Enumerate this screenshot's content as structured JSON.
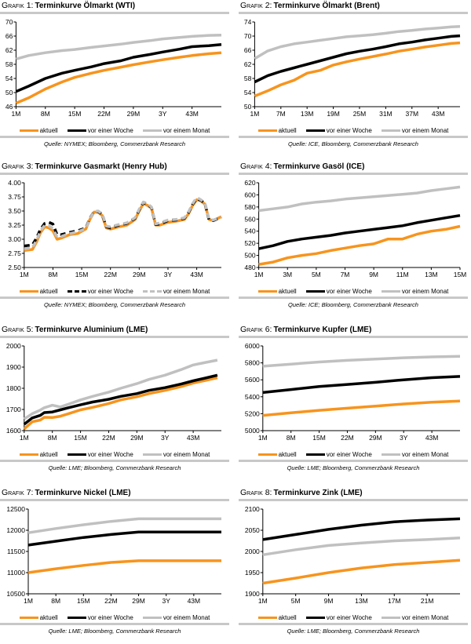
{
  "legend_colors": {
    "aktuell": "#f7941d",
    "vor einer Woche": "#000000",
    "vor einem Monat": "#c0c0c0"
  },
  "chart_data": [
    {
      "type": "line",
      "label": "Grafik 1:",
      "title": "Terminkurve Ölmarkt (WTI)",
      "source": "Quelle: NYMEX; Bloomberg, Commerzbank Research",
      "xlim": [
        1,
        50
      ],
      "ylim": [
        46,
        70
      ],
      "yticks": [
        "46",
        "50",
        "54",
        "58",
        "62",
        "66",
        "70"
      ],
      "xticks": [
        {
          "x": 1,
          "label": "1M"
        },
        {
          "x": 8,
          "label": "8M"
        },
        {
          "x": 15,
          "label": "15M"
        },
        {
          "x": 22,
          "label": "22M"
        },
        {
          "x": 29,
          "label": "29M"
        },
        {
          "x": 36,
          "label": "3Y"
        },
        {
          "x": 43,
          "label": "43M"
        }
      ],
      "x": [
        1,
        4,
        8,
        12,
        15,
        19,
        22,
        26,
        29,
        33,
        36,
        40,
        43,
        47,
        50
      ],
      "series": [
        {
          "name": "aktuell",
          "color": "#f7941d",
          "values": [
            47,
            48.5,
            51,
            53,
            54.3,
            55.5,
            56.3,
            57.2,
            57.9,
            58.7,
            59.3,
            60,
            60.5,
            61,
            61.3
          ]
        },
        {
          "name": "vor einer Woche",
          "color": "#000000",
          "values": [
            50.3,
            51.8,
            54,
            55.5,
            56.3,
            57.3,
            58.2,
            59,
            60,
            60.8,
            61.5,
            62.3,
            63,
            63.3,
            63.6
          ]
        },
        {
          "name": "vor einem Monat",
          "color": "#c0c0c0",
          "values": [
            59.5,
            60.5,
            61.3,
            61.9,
            62.2,
            62.8,
            63.2,
            63.7,
            64.2,
            64.7,
            65.2,
            65.6,
            65.9,
            66.2,
            66.3
          ]
        }
      ]
    },
    {
      "type": "line",
      "label": "Grafik 2:",
      "title": "Terminkurve Ölmarkt (Brent)",
      "source": "Quelle: ICE, Bloomberg, Commerzbank Research",
      "xlim": [
        1,
        48
      ],
      "ylim": [
        50,
        74
      ],
      "yticks": [
        "50",
        "54",
        "58",
        "62",
        "66",
        "70",
        "74"
      ],
      "xticks": [
        {
          "x": 1,
          "label": "1M"
        },
        {
          "x": 7,
          "label": "7M"
        },
        {
          "x": 13,
          "label": "13M"
        },
        {
          "x": 19,
          "label": "19M"
        },
        {
          "x": 25,
          "label": "25M"
        },
        {
          "x": 31,
          "label": "31M"
        },
        {
          "x": 37,
          "label": "37M"
        },
        {
          "x": 43,
          "label": "43M"
        }
      ],
      "x": [
        1,
        4,
        7,
        10,
        13,
        16,
        19,
        22,
        25,
        28,
        31,
        34,
        37,
        40,
        43,
        46,
        48
      ],
      "series": [
        {
          "name": "aktuell",
          "color": "#f7941d",
          "values": [
            53,
            54.5,
            56.2,
            57.5,
            59.5,
            60.3,
            61.8,
            62.7,
            63.5,
            64.2,
            64.9,
            65.7,
            66.3,
            66.9,
            67.4,
            67.9,
            68.1
          ]
        },
        {
          "name": "vor einer Woche",
          "color": "#000000",
          "values": [
            57,
            58.8,
            60,
            61,
            62,
            63,
            64,
            65,
            65.7,
            66.3,
            67,
            67.8,
            68.3,
            68.9,
            69.4,
            69.9,
            70.1
          ]
        },
        {
          "name": "vor einem Monat",
          "color": "#c0c0c0",
          "values": [
            63.6,
            65.8,
            67,
            67.8,
            68.3,
            68.8,
            69.3,
            69.8,
            70.1,
            70.4,
            70.8,
            71.3,
            71.6,
            72,
            72.3,
            72.6,
            72.7
          ]
        }
      ]
    },
    {
      "type": "line",
      "label": "Grafik 3:",
      "title": "Terminkurve Gasmarkt (Henry Hub)",
      "source": "Quelle: NYMEX; Bloomberg, Commerzbank Research",
      "xlim": [
        1,
        49
      ],
      "ylim": [
        2.5,
        4.0
      ],
      "dashed": [
        "vor einer Woche",
        "vor einem Monat"
      ],
      "yticks": [
        "2.50",
        "2.75",
        "3.00",
        "3.25",
        "3.50",
        "3.75",
        "4.00"
      ],
      "xticks": [
        {
          "x": 1,
          "label": "1M"
        },
        {
          "x": 8,
          "label": "8M"
        },
        {
          "x": 15,
          "label": "15M"
        },
        {
          "x": 22,
          "label": "22M"
        },
        {
          "x": 29,
          "label": "29M"
        },
        {
          "x": 36,
          "label": "3Y"
        },
        {
          "x": 43,
          "label": "43M"
        }
      ],
      "x": [
        1,
        3,
        4,
        5,
        6,
        7,
        8,
        9,
        10,
        12,
        14,
        16,
        17,
        18,
        19,
        20,
        21,
        22,
        24,
        26,
        28,
        29,
        30,
        31,
        32,
        33,
        34,
        36,
        38,
        40,
        41,
        42,
        43,
        44,
        45,
        46,
        47,
        49
      ],
      "series": [
        {
          "name": "aktuell",
          "color": "#f7941d",
          "values": [
            2.8,
            2.82,
            2.95,
            3.12,
            3.22,
            3.2,
            3.15,
            3.0,
            3.02,
            3.08,
            3.1,
            3.18,
            3.35,
            3.48,
            3.48,
            3.42,
            3.2,
            3.18,
            3.22,
            3.25,
            3.35,
            3.5,
            3.63,
            3.6,
            3.55,
            3.25,
            3.25,
            3.3,
            3.32,
            3.35,
            3.45,
            3.6,
            3.7,
            3.68,
            3.62,
            3.35,
            3.33,
            3.4
          ]
        },
        {
          "name": "vor einer Woche",
          "color": "#000000",
          "values": [
            2.88,
            2.9,
            3.02,
            3.18,
            3.28,
            3.3,
            3.27,
            3.08,
            3.08,
            3.12,
            3.15,
            3.2,
            3.37,
            3.49,
            3.49,
            3.44,
            3.22,
            3.2,
            3.25,
            3.28,
            3.37,
            3.52,
            3.65,
            3.62,
            3.56,
            3.26,
            3.27,
            3.33,
            3.34,
            3.37,
            3.47,
            3.62,
            3.72,
            3.69,
            3.63,
            3.34,
            3.33,
            3.39
          ]
        },
        {
          "name": "vor einem Monat",
          "color": "#c0c0c0",
          "values": [
            2.83,
            2.85,
            2.98,
            3.15,
            3.25,
            3.24,
            3.19,
            3.04,
            3.05,
            3.1,
            3.13,
            3.19,
            3.36,
            3.49,
            3.5,
            3.45,
            3.23,
            3.22,
            3.26,
            3.29,
            3.38,
            3.53,
            3.66,
            3.63,
            3.57,
            3.27,
            3.29,
            3.34,
            3.35,
            3.38,
            3.48,
            3.63,
            3.74,
            3.7,
            3.64,
            3.35,
            3.34,
            3.39
          ]
        }
      ]
    },
    {
      "type": "line",
      "label": "Grafik 4:",
      "title": "Terminkurve Gasöl (ICE)",
      "source": "Quelle: ICE; Bloomberg, Commerzbank Research",
      "xlim": [
        1,
        15
      ],
      "ylim": [
        480,
        620
      ],
      "yticks": [
        "480",
        "500",
        "520",
        "540",
        "560",
        "580",
        "600",
        "620"
      ],
      "xticks": [
        {
          "x": 1,
          "label": "1M"
        },
        {
          "x": 3,
          "label": "3M"
        },
        {
          "x": 5,
          "label": "5M"
        },
        {
          "x": 7,
          "label": "7M"
        },
        {
          "x": 9,
          "label": "9M"
        },
        {
          "x": 11,
          "label": "11M"
        },
        {
          "x": 13,
          "label": "13M"
        },
        {
          "x": 15,
          "label": "15M"
        }
      ],
      "x": [
        1,
        2,
        3,
        4,
        5,
        6,
        7,
        8,
        9,
        10,
        11,
        12,
        13,
        14,
        15
      ],
      "series": [
        {
          "name": "aktuell",
          "color": "#f7941d",
          "values": [
            485,
            489,
            496,
            500,
            503,
            508,
            512,
            516,
            519,
            527,
            527,
            535,
            540,
            543,
            548
          ]
        },
        {
          "name": "vor einer Woche",
          "color": "#000000",
          "values": [
            511,
            516,
            523,
            527,
            530,
            533,
            537,
            540,
            543,
            546,
            549,
            554,
            558,
            562,
            566
          ]
        },
        {
          "name": "vor einem Monat",
          "color": "#c0c0c0",
          "values": [
            574,
            577,
            580,
            585,
            588,
            590,
            593,
            595,
            597,
            599,
            601,
            603,
            607,
            610,
            613
          ]
        }
      ]
    },
    {
      "type": "line",
      "label": "Grafik 5:",
      "title": "Terminkurve Aluminium (LME)",
      "source": "Quelle: LME; Bloomberg, Commerzbank Research",
      "xlim": [
        1,
        50
      ],
      "ylim": [
        1600,
        2000
      ],
      "yticks": [
        "1600",
        "1700",
        "1800",
        "1900",
        "2000"
      ],
      "xticks": [
        {
          "x": 1,
          "label": "1M"
        },
        {
          "x": 8,
          "label": "8M"
        },
        {
          "x": 15,
          "label": "15M"
        },
        {
          "x": 22,
          "label": "22M"
        },
        {
          "x": 29,
          "label": "29M"
        },
        {
          "x": 36,
          "label": "3Y"
        },
        {
          "x": 43,
          "label": "43M"
        }
      ],
      "x": [
        1,
        3,
        5,
        6,
        8,
        10,
        12,
        15,
        18,
        22,
        25,
        29,
        32,
        36,
        40,
        43,
        46,
        49
      ],
      "series": [
        {
          "name": "aktuell",
          "color": "#f7941d",
          "values": [
            1608,
            1642,
            1650,
            1663,
            1662,
            1668,
            1680,
            1698,
            1710,
            1728,
            1745,
            1760,
            1775,
            1790,
            1808,
            1825,
            1837,
            1850
          ]
        },
        {
          "name": "vor einer Woche",
          "color": "#000000",
          "values": [
            1630,
            1660,
            1672,
            1685,
            1688,
            1698,
            1708,
            1722,
            1735,
            1748,
            1762,
            1775,
            1790,
            1803,
            1820,
            1835,
            1848,
            1862
          ]
        },
        {
          "name": "vor einem Monat",
          "color": "#c0c0c0",
          "values": [
            1655,
            1680,
            1697,
            1708,
            1720,
            1712,
            1725,
            1745,
            1762,
            1782,
            1800,
            1822,
            1842,
            1862,
            1888,
            1910,
            1922,
            1933
          ]
        }
      ]
    },
    {
      "type": "line",
      "label": "Grafik 6:",
      "title": "Terminkurve Kupfer (LME)",
      "source": "Quelle: LME; Bloomberg, Commerzbank Research",
      "xlim": [
        1,
        50
      ],
      "ylim": [
        5000,
        6000
      ],
      "yticks": [
        "5000",
        "5200",
        "5400",
        "5600",
        "5800",
        "6000"
      ],
      "xticks": [
        {
          "x": 1,
          "label": "1M"
        },
        {
          "x": 8,
          "label": "8M"
        },
        {
          "x": 15,
          "label": "15M"
        },
        {
          "x": 22,
          "label": "22M"
        },
        {
          "x": 29,
          "label": "29M"
        },
        {
          "x": 36,
          "label": "3Y"
        },
        {
          "x": 43,
          "label": "43M"
        }
      ],
      "x": [
        1,
        8,
        15,
        22,
        29,
        36,
        43,
        50
      ],
      "series": [
        {
          "name": "aktuell",
          "color": "#f7941d",
          "values": [
            5180,
            5210,
            5240,
            5265,
            5290,
            5315,
            5335,
            5350
          ]
        },
        {
          "name": "vor einer Woche",
          "color": "#000000",
          "values": [
            5450,
            5485,
            5520,
            5545,
            5570,
            5600,
            5625,
            5640
          ]
        },
        {
          "name": "vor einem Monat",
          "color": "#c0c0c0",
          "values": [
            5760,
            5785,
            5810,
            5830,
            5845,
            5860,
            5870,
            5878
          ]
        }
      ]
    },
    {
      "type": "line",
      "label": "Grafik 7:",
      "title": "Terminkurve Nickel (LME)",
      "source": "Quelle: LME; Bloomberg, Commerzbank Research",
      "xlim": [
        1,
        50
      ],
      "ylim": [
        10500,
        12500
      ],
      "yticks": [
        "10500",
        "11000",
        "11500",
        "12000",
        "12500"
      ],
      "xticks": [
        {
          "x": 1,
          "label": "1M"
        },
        {
          "x": 8,
          "label": "8M"
        },
        {
          "x": 15,
          "label": "15M"
        },
        {
          "x": 22,
          "label": "22M"
        },
        {
          "x": 29,
          "label": "29M"
        },
        {
          "x": 36,
          "label": "3Y"
        },
        {
          "x": 43,
          "label": "43M"
        }
      ],
      "x": [
        1,
        8,
        15,
        22,
        29,
        36,
        43,
        50
      ],
      "series": [
        {
          "name": "aktuell",
          "color": "#f7941d",
          "values": [
            11000,
            11090,
            11170,
            11240,
            11280,
            11280,
            11280,
            11280
          ]
        },
        {
          "name": "vor einer Woche",
          "color": "#000000",
          "values": [
            11650,
            11740,
            11830,
            11900,
            11960,
            11960,
            11960,
            11960
          ]
        },
        {
          "name": "vor einem Monat",
          "color": "#c0c0c0",
          "values": [
            11940,
            12040,
            12130,
            12210,
            12270,
            12270,
            12270,
            12270
          ]
        }
      ]
    },
    {
      "type": "line",
      "label": "Grafik 8:",
      "title": "Terminkurve Zink (LME)",
      "source": "Quelle: LME; Bloomberg, Commerzbank Research",
      "xlim": [
        1,
        25
      ],
      "ylim": [
        1900,
        2100
      ],
      "yticks": [
        "1900",
        "1950",
        "2000",
        "2050",
        "2100"
      ],
      "xticks": [
        {
          "x": 1,
          "label": "1M"
        },
        {
          "x": 5,
          "label": "5M"
        },
        {
          "x": 9,
          "label": "9M"
        },
        {
          "x": 13,
          "label": "13M"
        },
        {
          "x": 17,
          "label": "17M"
        },
        {
          "x": 21,
          "label": "21M"
        }
      ],
      "x": [
        1,
        5,
        9,
        13,
        17,
        21,
        25
      ],
      "series": [
        {
          "name": "aktuell",
          "color": "#f7941d",
          "values": [
            1925,
            1937,
            1950,
            1961,
            1969,
            1974,
            1979
          ]
        },
        {
          "name": "vor einer Woche",
          "color": "#000000",
          "values": [
            2028,
            2040,
            2052,
            2062,
            2070,
            2074,
            2077
          ]
        },
        {
          "name": "vor einem Monat",
          "color": "#c0c0c0",
          "values": [
            1992,
            2004,
            2014,
            2020,
            2025,
            2028,
            2032
          ]
        }
      ]
    }
  ]
}
